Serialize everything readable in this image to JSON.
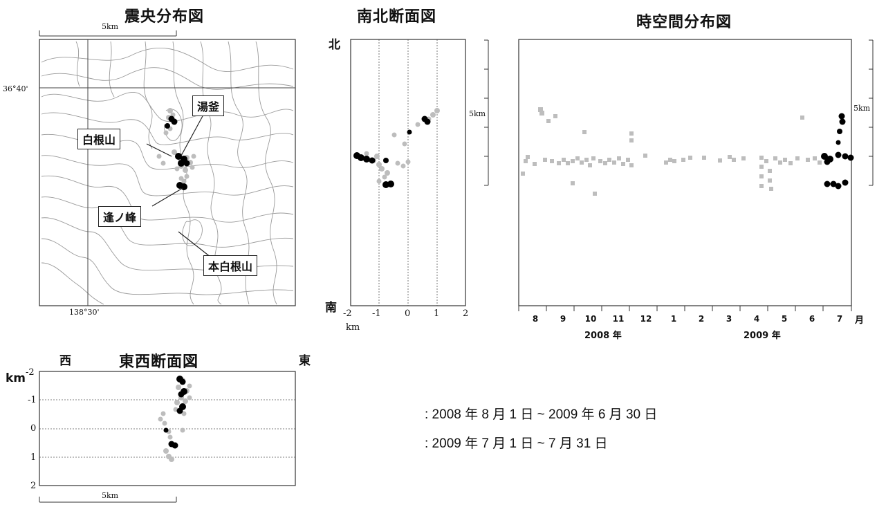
{
  "titles": {
    "epicenter": "震央分布図",
    "ns_section": "南北断面図",
    "time_space": "時空間分布図",
    "ew_section": "東西断面図"
  },
  "map": {
    "scale_label": "5km",
    "lat_label": "36°40'",
    "lon_label": "138°30'",
    "places": {
      "yugama": "湯釜",
      "shiraneyama": "白根山",
      "ainomine": "逢ノ峰",
      "motoshirane": "本白根山"
    }
  },
  "ns": {
    "north": "北",
    "south": "南",
    "scale_label": "5km",
    "x_ticks": [
      "-2",
      "-1",
      "0",
      "1",
      "2"
    ],
    "x_unit": "km"
  },
  "ts": {
    "scale_label": "5km",
    "months": [
      "8",
      "9",
      "10",
      "11",
      "12",
      "1",
      "2",
      "3",
      "4",
      "5",
      "6",
      "7"
    ],
    "month_unit": "月",
    "year_2008": "2008 年",
    "year_2009": "2009 年"
  },
  "ew": {
    "west": "西",
    "east": "東",
    "km": "km",
    "y_ticks": [
      "-2",
      "-1",
      "0",
      "1",
      "2"
    ],
    "scale_label": "5km"
  },
  "legend": {
    "gray": ": 2008 年 8 月 1 日 ~ 2009 年 6 月 30 日",
    "black": ": 2009 年 7 月 1 日 ~ 7 月 31 日"
  },
  "colors": {
    "period_1": "#bdbdbd",
    "period_2": "#000000"
  }
}
